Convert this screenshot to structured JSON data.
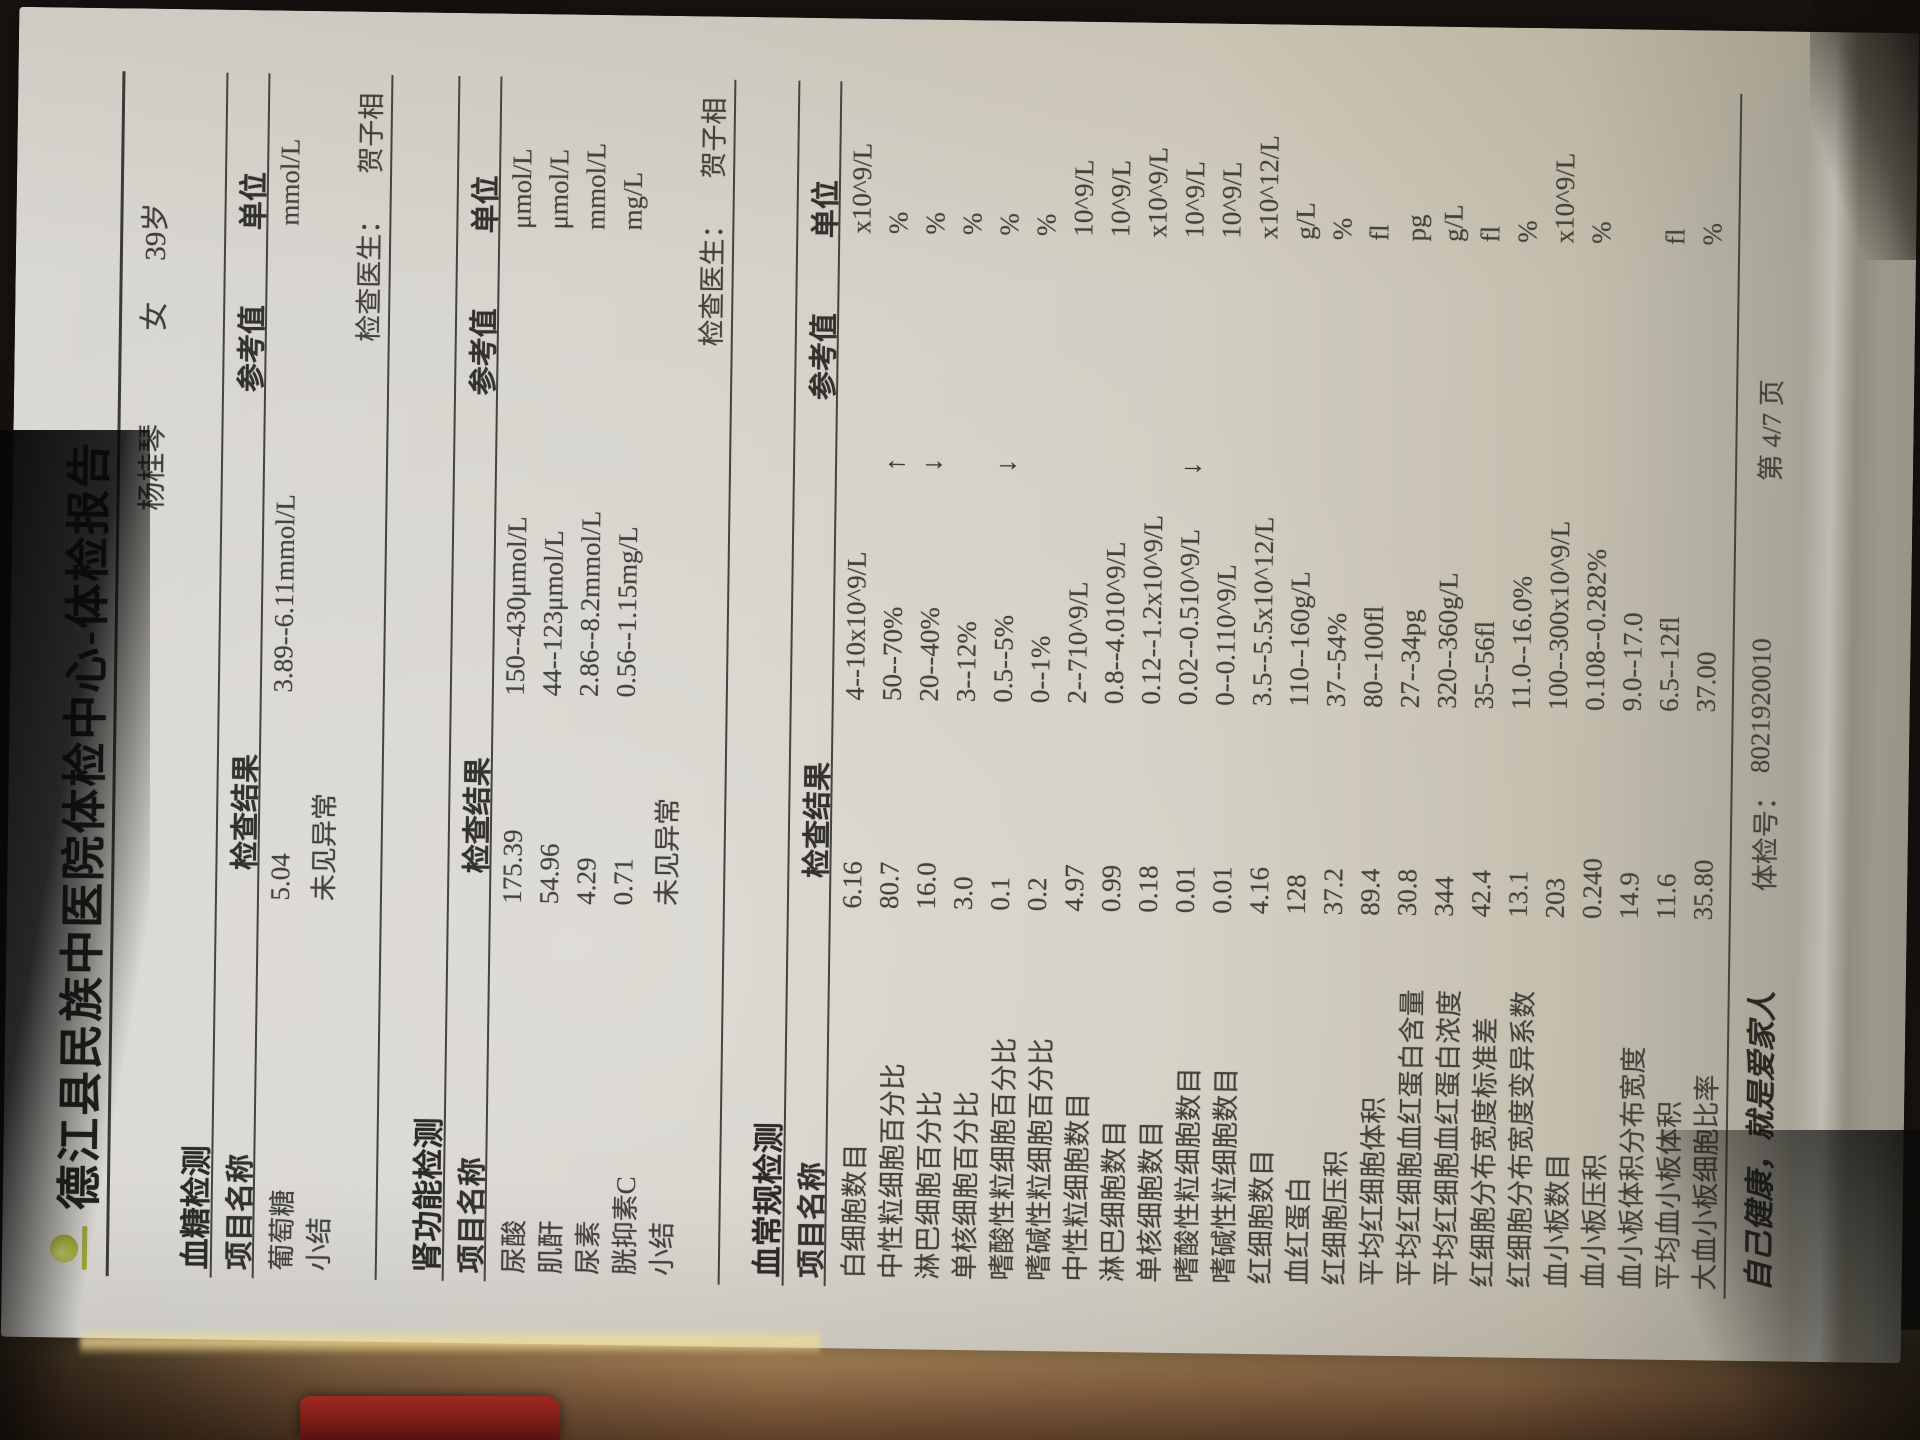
{
  "document": {
    "title": "德江县民族中医院体检中心-体检报告",
    "patient": {
      "name": "杨桂琴",
      "sex": "女",
      "age": "39岁"
    },
    "table_headers": {
      "item": "项目名称",
      "result": "检查结果",
      "reference": "参考值",
      "unit": "单位"
    },
    "sections": [
      {
        "name": "血糖检测",
        "rows": [
          {
            "item": "葡萄糖",
            "result": "5.04",
            "flag": "",
            "ref": "3.89--6.11mmol/L",
            "unit": "mmol/L"
          }
        ],
        "summary_label": "小结",
        "summary": "未见异常",
        "doctor_label": "检查医生：",
        "doctor": "贺子相"
      },
      {
        "name": "肾功能检测",
        "rows": [
          {
            "item": "尿酸",
            "result": "175.39",
            "flag": "",
            "ref": "150--430μmol/L",
            "unit": "μmol/L"
          },
          {
            "item": "肌酐",
            "result": "54.96",
            "flag": "",
            "ref": "44--123μmol/L",
            "unit": "μmol/L"
          },
          {
            "item": "尿素",
            "result": "4.29",
            "flag": "",
            "ref": "2.86--8.2mmol/L",
            "unit": "mmol/L"
          },
          {
            "item": "胱抑素C",
            "result": "0.71",
            "flag": "",
            "ref": "0.56--1.15mg/L",
            "unit": "mg/L"
          }
        ],
        "summary_label": "小结",
        "summary": "未见异常",
        "doctor_label": "检查医生：",
        "doctor": "贺子相"
      },
      {
        "name": "血常规检测",
        "rows": [
          {
            "item": "白细胞数目",
            "result": "6.16",
            "flag": "",
            "ref": "4--10x10^9/L",
            "unit": "x10^9/L"
          },
          {
            "item": "中性粒细胞百分比",
            "result": "80.7",
            "flag": "↑",
            "ref": "50--70%",
            "unit": "%"
          },
          {
            "item": "淋巴细胞百分比",
            "result": "16.0",
            "flag": "↓",
            "ref": "20--40%",
            "unit": "%"
          },
          {
            "item": "单核细胞百分比",
            "result": "3.0",
            "flag": "",
            "ref": "3--12%",
            "unit": "%"
          },
          {
            "item": "嗜酸性粒细胞百分比",
            "result": "0.1",
            "flag": "↓",
            "ref": "0.5--5%",
            "unit": "%"
          },
          {
            "item": "嗜碱性粒细胞百分比",
            "result": "0.2",
            "flag": "",
            "ref": "0--1%",
            "unit": "%"
          },
          {
            "item": "中性粒细胞数目",
            "result": "4.97",
            "flag": "",
            "ref": "2--710^9/L",
            "unit": "10^9/L"
          },
          {
            "item": "淋巴细胞数目",
            "result": "0.99",
            "flag": "",
            "ref": "0.8--4.010^9/L",
            "unit": "10^9/L"
          },
          {
            "item": "单核细胞数目",
            "result": "0.18",
            "flag": "",
            "ref": "0.12--1.2x10^9/L",
            "unit": "x10^9/L"
          },
          {
            "item": "嗜酸性粒细胞数目",
            "result": "0.01",
            "flag": "↓",
            "ref": "0.02--0.510^9/L",
            "unit": "10^9/L"
          },
          {
            "item": "嗜碱性粒细胞数目",
            "result": "0.01",
            "flag": "",
            "ref": "0--0.110^9/L",
            "unit": "10^9/L"
          },
          {
            "item": "红细胞数目",
            "result": "4.16",
            "flag": "",
            "ref": "3.5--5.5x10^12/L",
            "unit": "x10^12/L"
          },
          {
            "item": "血红蛋白",
            "result": "128",
            "flag": "",
            "ref": "110--160g/L",
            "unit": "g/L"
          },
          {
            "item": "红细胞压积",
            "result": "37.2",
            "flag": "",
            "ref": "37--54%",
            "unit": "%"
          },
          {
            "item": "平均红细胞体积",
            "result": "89.4",
            "flag": "",
            "ref": "80--100fl",
            "unit": "fl"
          },
          {
            "item": "平均红细胞血红蛋白含量",
            "result": "30.8",
            "flag": "",
            "ref": "27--34pg",
            "unit": "pg"
          },
          {
            "item": "平均红细胞血红蛋白浓度",
            "result": "344",
            "flag": "",
            "ref": "320--360g/L",
            "unit": "g/L"
          },
          {
            "item": "红细胞分布宽度标准差",
            "result": "42.4",
            "flag": "",
            "ref": "35--56fl",
            "unit": "fl"
          },
          {
            "item": "红细胞分布宽度变异系数",
            "result": "13.1",
            "flag": "",
            "ref": "11.0--16.0%",
            "unit": "%"
          },
          {
            "item": "血小板数目",
            "result": "203",
            "flag": "",
            "ref": "100--300x10^9/L",
            "unit": "x10^9/L"
          },
          {
            "item": "血小板压积",
            "result": "0.240",
            "flag": "",
            "ref": "0.108--0.282%",
            "unit": "%"
          },
          {
            "item": "血小板体积分布宽度",
            "result": "14.9",
            "flag": "",
            "ref": "9.0--17.0",
            "unit": ""
          },
          {
            "item": "平均血小板体积",
            "result": "11.6",
            "flag": "",
            "ref": "6.5--12fl",
            "unit": "fl"
          },
          {
            "item": "大血小板细胞比率",
            "result": "35.80",
            "flag": "",
            "ref": "37.00",
            "unit": "%"
          }
        ]
      }
    ],
    "footer": {
      "slogan": "自己健康，就是爱家人",
      "exam_no_label": "体检号：",
      "exam_no": "8021920010",
      "page_label": "第 4/7 页"
    }
  }
}
